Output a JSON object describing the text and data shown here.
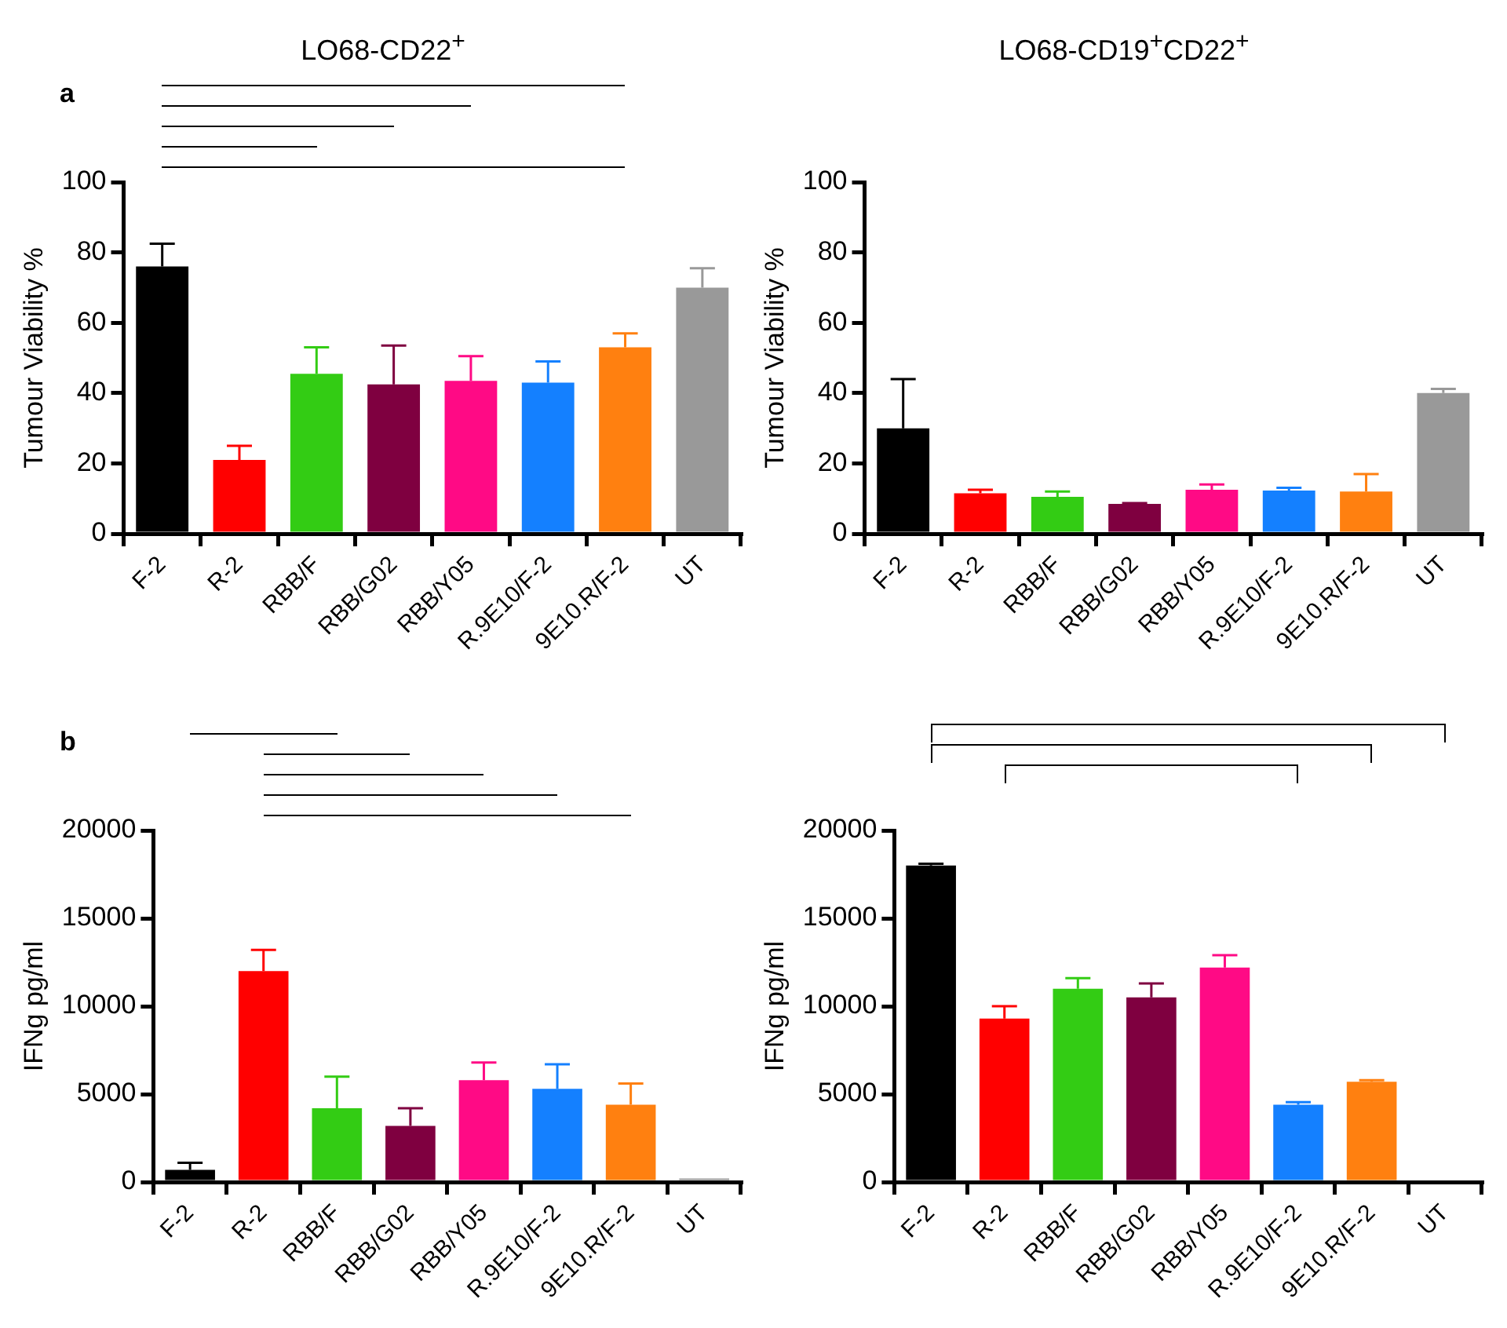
{
  "chart_data": [
    {
      "type": "bar",
      "title": "LO68-CD22$^{+}$",
      "ylabel": "Tumour Viability %",
      "annotations": [
        "a"
      ],
      "categories": [
        "F-2",
        "R-2",
        "RBB/F",
        "RBB/G02",
        "RBB/Y05",
        "R.9E10/F-2",
        "9E10.R/F-2",
        "UT"
      ],
      "values": [
        76,
        21,
        45.5,
        42.5,
        43.5,
        43,
        53,
        70
      ],
      "colors": [
        "#000000",
        "#ff0000",
        "#33cc14",
        "#7f0040",
        "#ff0a85",
        "#1480ff",
        "#ff8010",
        "#999999"
      ],
      "errors": [
        [
          76,
          82.5
        ],
        [
          21,
          25
        ],
        [
          45.5,
          53
        ],
        [
          42.5,
          53.5
        ],
        [
          43.5,
          50.5
        ],
        [
          43,
          49
        ],
        [
          53,
          57
        ],
        [
          70,
          75.5
        ]
      ],
      "ylim": [
        0,
        100
      ],
      "yticks": [
        0,
        20,
        40,
        60,
        80,
        100
      ],
      "grid": false,
      "legend": false
    },
    {
      "type": "bar",
      "title": "LO68-CD19$^{+}$CD22$^{+}$",
      "ylabel": "Tumour Viability %",
      "categories": [
        "F-2",
        "R-2",
        "RBB/F",
        "RBB/G02",
        "RBB/Y05",
        "R.9E10/F-2",
        "9E10.R/F-2",
        "UT"
      ],
      "values": [
        30,
        11.5,
        10.5,
        8.5,
        12.5,
        12.3,
        12,
        40
      ],
      "colors": [
        "#000000",
        "#ff0000",
        "#33cc14",
        "#7f0040",
        "#ff0a85",
        "#1480ff",
        "#ff8010",
        "#999999"
      ],
      "errors": [
        [
          30,
          44
        ],
        [
          11.5,
          12.5
        ],
        [
          10.5,
          12
        ],
        [
          8.5,
          8.7
        ],
        [
          12.5,
          14
        ],
        [
          12.3,
          13.1
        ],
        [
          12,
          17
        ],
        [
          40,
          41.2
        ]
      ],
      "ylim": [
        0,
        100
      ],
      "yticks": [
        0,
        20,
        40,
        60,
        80,
        100
      ],
      "grid": false,
      "legend": false
    },
    {
      "type": "bar",
      "ylabel": "IFNg pg/ml",
      "annotations": [
        "b"
      ],
      "categories": [
        "F-2",
        "R-2",
        "RBB/F",
        "RBB/G02",
        "RBB/Y05",
        "R.9E10/F-2",
        "9E10.R/F-2",
        "UT"
      ],
      "values": [
        700,
        12000,
        4200,
        3200,
        5800,
        5300,
        4400,
        200
      ],
      "colors": [
        "#000000",
        "#ff0000",
        "#33cc14",
        "#7f0040",
        "#ff0a85",
        "#1480ff",
        "#ff8010",
        "#999999"
      ],
      "errors": [
        [
          700,
          1100
        ],
        [
          12000,
          13200
        ],
        [
          4200,
          6000
        ],
        [
          3200,
          4200
        ],
        [
          5800,
          6800
        ],
        [
          5300,
          6700
        ],
        [
          4400,
          5600
        ],
        null
      ],
      "ylim": [
        0,
        20000
      ],
      "yticks": [
        0,
        5000,
        10000,
        15000,
        20000
      ],
      "grid": false,
      "legend": false
    },
    {
      "type": "bar",
      "ylabel": "IFNg pg/ml",
      "categories": [
        "F-2",
        "R-2",
        "RBB/F",
        "RBB/G02",
        "RBB/Y05",
        "R.9E10/F-2",
        "9E10.R/F-2",
        "UT"
      ],
      "values": [
        18000,
        9300,
        11000,
        10500,
        12200,
        4400,
        5700,
        0
      ],
      "colors": [
        "#000000",
        "#ff0000",
        "#33cc14",
        "#7f0040",
        "#ff0a85",
        "#1480ff",
        "#ff8010",
        "#999999"
      ],
      "errors": [
        [
          18000,
          18100
        ],
        [
          9300,
          10000
        ],
        [
          11000,
          11600
        ],
        [
          10500,
          11300
        ],
        [
          12200,
          12900
        ],
        [
          4400,
          4550
        ],
        [
          5700,
          5800
        ],
        null
      ],
      "ylim": [
        0,
        20000
      ],
      "yticks": [
        0,
        5000,
        10000,
        15000,
        20000
      ],
      "grid": false,
      "legend": false
    }
  ]
}
